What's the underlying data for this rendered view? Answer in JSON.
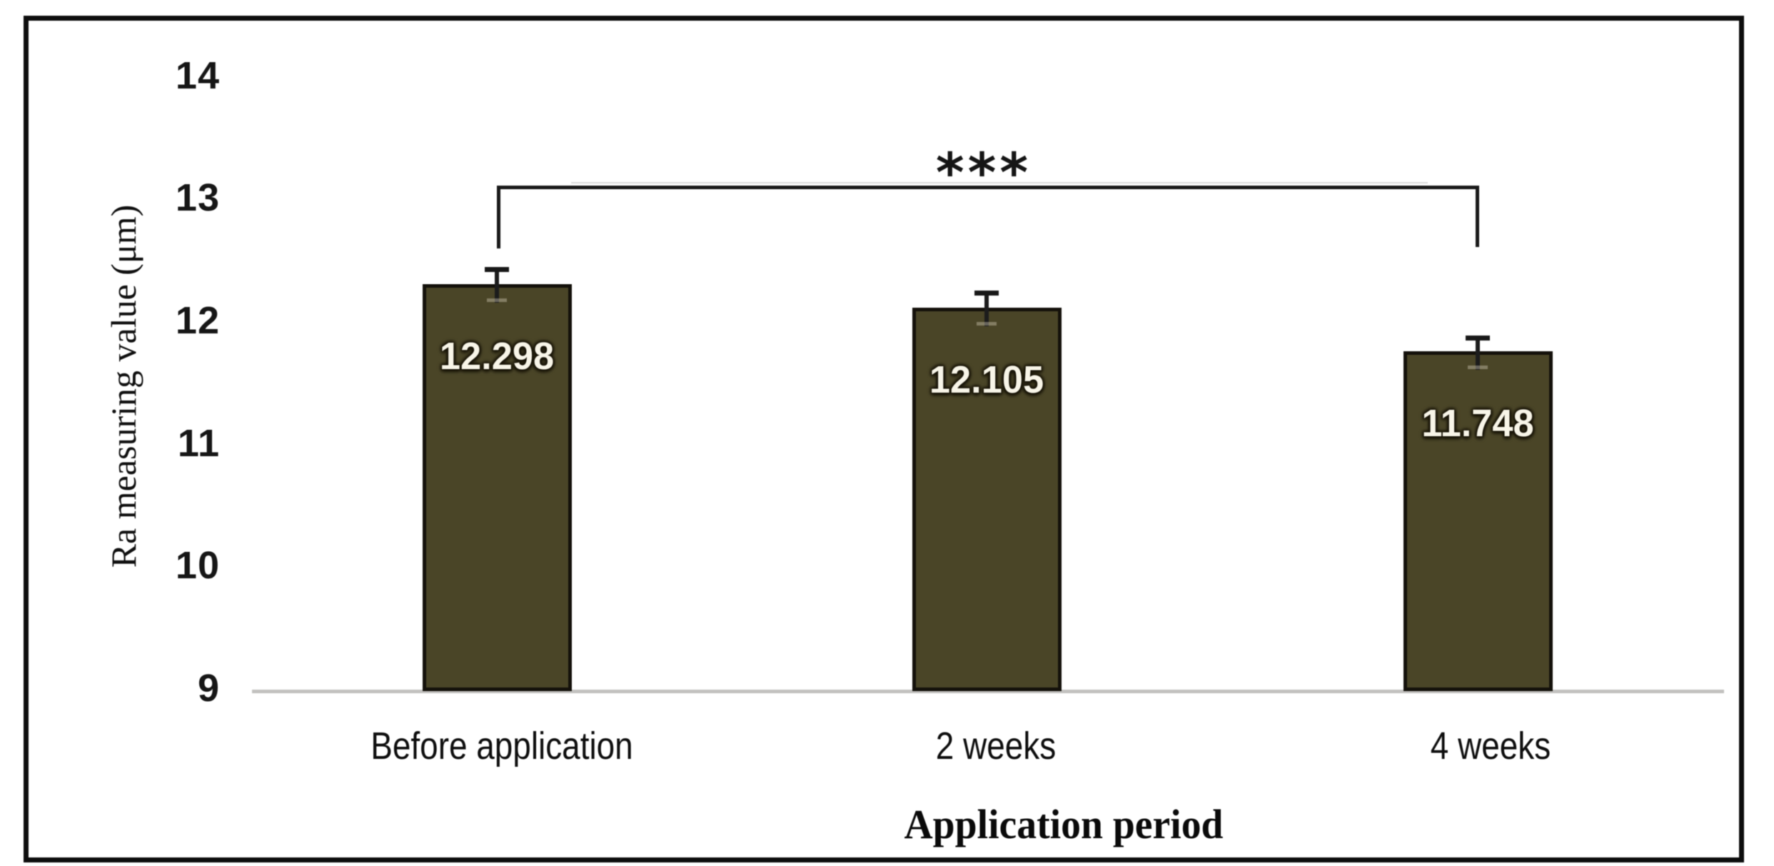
{
  "figure": {
    "background": "#ffffff",
    "frame_color": "#0d0d0d",
    "axis_line_color": "#c2c1bf"
  },
  "chart_data": {
    "type": "bar",
    "title": "",
    "xlabel": "Application period",
    "ylabel": "Ra measuring value (μm)",
    "categories": [
      "Before application",
      "2 weeks",
      "4 weeks"
    ],
    "values": [
      12.298,
      12.105,
      11.748
    ],
    "value_labels": [
      "12.298",
      "12.105",
      "11.748"
    ],
    "errors": [
      0.14,
      0.14,
      0.13
    ],
    "ylim": [
      9,
      14
    ],
    "yticks": [
      14,
      13,
      12,
      11,
      10,
      9
    ],
    "ytick_labels": [
      "14",
      "13",
      "12",
      "11",
      "10",
      "9"
    ],
    "grid": false,
    "legend": null,
    "bar_color": "#4a4527",
    "bar_border_color": "#14110b",
    "value_label_color": "#f8f5e8",
    "significance": {
      "label": "***",
      "from_category": "Before application",
      "to_category": "4 weeks"
    }
  }
}
